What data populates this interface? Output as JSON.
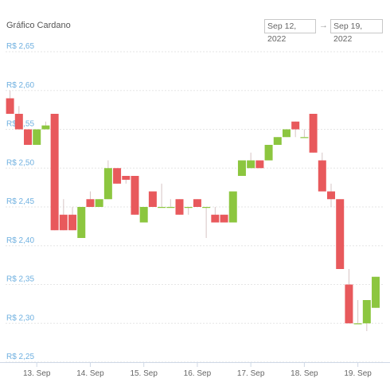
{
  "header": {
    "title": "Gráfico Cardano",
    "range_from": "Sep 12, 2022",
    "range_arrow": "→",
    "range_to": "Sep 19, 2022"
  },
  "colors": {
    "up": "#8cc63f",
    "down": "#e8595c",
    "wick": "#d6c4c4",
    "grid": "#e6e6e6",
    "axis_label": "#6fb0e0"
  },
  "chart_data": {
    "type": "candlestick",
    "title": "Gráfico Cardano",
    "ylim": [
      2.25,
      2.65
    ],
    "y_ticks": [
      {
        "value": 2.65,
        "label": "R$ 2,65"
      },
      {
        "value": 2.6,
        "label": "R$ 2,60"
      },
      {
        "value": 2.55,
        "label": "R$ 2,55"
      },
      {
        "value": 2.5,
        "label": "R$ 2,50"
      },
      {
        "value": 2.45,
        "label": "R$ 2,45"
      },
      {
        "value": 2.4,
        "label": "R$ 2,40"
      },
      {
        "value": 2.35,
        "label": "R$ 2,35"
      },
      {
        "value": 2.3,
        "label": "R$ 2,30"
      },
      {
        "value": 2.25,
        "label": "R$ 2,25"
      }
    ],
    "x_ticks": [
      {
        "t": 12,
        "label": "13. Sep"
      },
      {
        "t": 24,
        "label": "14. Sep"
      },
      {
        "t": 36,
        "label": "15. Sep"
      },
      {
        "t": 48,
        "label": "16. Sep"
      },
      {
        "t": 60,
        "label": "17. Sep"
      },
      {
        "t": 72,
        "label": "18. Sep"
      },
      {
        "t": 84,
        "label": "19. Sep"
      }
    ],
    "candles": [
      {
        "t": 6,
        "open": 2.59,
        "high": 2.6,
        "low": 2.57,
        "close": 2.57
      },
      {
        "t": 8,
        "open": 2.57,
        "high": 2.58,
        "low": 2.55,
        "close": 2.55
      },
      {
        "t": 10,
        "open": 2.55,
        "high": 2.55,
        "low": 2.53,
        "close": 2.53
      },
      {
        "t": 12,
        "open": 2.53,
        "high": 2.55,
        "low": 2.53,
        "close": 2.55
      },
      {
        "t": 14,
        "open": 2.55,
        "high": 2.56,
        "low": 2.55,
        "close": 2.555
      },
      {
        "t": 16,
        "open": 2.57,
        "high": 2.57,
        "low": 2.42,
        "close": 2.42
      },
      {
        "t": 18,
        "open": 2.44,
        "high": 2.46,
        "low": 2.42,
        "close": 2.42
      },
      {
        "t": 20,
        "open": 2.44,
        "high": 2.45,
        "low": 2.42,
        "close": 2.42
      },
      {
        "t": 22,
        "open": 2.41,
        "high": 2.45,
        "low": 2.41,
        "close": 2.45
      },
      {
        "t": 24,
        "open": 2.46,
        "high": 2.47,
        "low": 2.45,
        "close": 2.45
      },
      {
        "t": 26,
        "open": 2.45,
        "high": 2.46,
        "low": 2.45,
        "close": 2.46
      },
      {
        "t": 28,
        "open": 2.46,
        "high": 2.51,
        "low": 2.46,
        "close": 2.5
      },
      {
        "t": 30,
        "open": 2.5,
        "high": 2.5,
        "low": 2.48,
        "close": 2.48
      },
      {
        "t": 32,
        "open": 2.49,
        "high": 2.49,
        "low": 2.48,
        "close": 2.485
      },
      {
        "t": 34,
        "open": 2.49,
        "high": 2.49,
        "low": 2.44,
        "close": 2.44
      },
      {
        "t": 36,
        "open": 2.43,
        "high": 2.45,
        "low": 2.43,
        "close": 2.45
      },
      {
        "t": 38,
        "open": 2.47,
        "high": 2.47,
        "low": 2.45,
        "close": 2.45
      },
      {
        "t": 40,
        "open": 2.45,
        "high": 2.48,
        "low": 2.45,
        "close": 2.45
      },
      {
        "t": 42,
        "open": 2.45,
        "high": 2.46,
        "low": 2.45,
        "close": 2.45
      },
      {
        "t": 44,
        "open": 2.46,
        "high": 2.46,
        "low": 2.44,
        "close": 2.44
      },
      {
        "t": 46,
        "open": 2.45,
        "high": 2.45,
        "low": 2.44,
        "close": 2.45
      },
      {
        "t": 48,
        "open": 2.46,
        "high": 2.46,
        "low": 2.45,
        "close": 2.45
      },
      {
        "t": 50,
        "open": 2.45,
        "high": 2.45,
        "low": 2.41,
        "close": 2.45
      },
      {
        "t": 52,
        "open": 2.44,
        "high": 2.45,
        "low": 2.43,
        "close": 2.43
      },
      {
        "t": 54,
        "open": 2.44,
        "high": 2.44,
        "low": 2.43,
        "close": 2.43
      },
      {
        "t": 56,
        "open": 2.43,
        "high": 2.47,
        "low": 2.43,
        "close": 2.47
      },
      {
        "t": 58,
        "open": 2.49,
        "high": 2.51,
        "low": 2.49,
        "close": 2.51
      },
      {
        "t": 60,
        "open": 2.5,
        "high": 2.52,
        "low": 2.5,
        "close": 2.51
      },
      {
        "t": 62,
        "open": 2.51,
        "high": 2.51,
        "low": 2.5,
        "close": 2.5
      },
      {
        "t": 64,
        "open": 2.51,
        "high": 2.53,
        "low": 2.51,
        "close": 2.53
      },
      {
        "t": 66,
        "open": 2.53,
        "high": 2.54,
        "low": 2.53,
        "close": 2.54
      },
      {
        "t": 68,
        "open": 2.54,
        "high": 2.55,
        "low": 2.54,
        "close": 2.55
      },
      {
        "t": 70,
        "open": 2.56,
        "high": 2.56,
        "low": 2.54,
        "close": 2.55
      },
      {
        "t": 72,
        "open": 2.54,
        "high": 2.55,
        "low": 2.54,
        "close": 2.54
      },
      {
        "t": 74,
        "open": 2.57,
        "high": 2.57,
        "low": 2.52,
        "close": 2.52
      },
      {
        "t": 76,
        "open": 2.51,
        "high": 2.52,
        "low": 2.47,
        "close": 2.47
      },
      {
        "t": 78,
        "open": 2.47,
        "high": 2.48,
        "low": 2.45,
        "close": 2.46
      },
      {
        "t": 80,
        "open": 2.46,
        "high": 2.46,
        "low": 2.37,
        "close": 2.37
      },
      {
        "t": 82,
        "open": 2.35,
        "high": 2.37,
        "low": 2.3,
        "close": 2.3
      },
      {
        "t": 84,
        "open": 2.3,
        "high": 2.33,
        "low": 2.3,
        "close": 2.3
      },
      {
        "t": 86,
        "open": 2.3,
        "high": 2.33,
        "low": 2.29,
        "close": 2.33
      },
      {
        "t": 88,
        "open": 2.32,
        "high": 2.36,
        "low": 2.32,
        "close": 2.36
      }
    ]
  }
}
